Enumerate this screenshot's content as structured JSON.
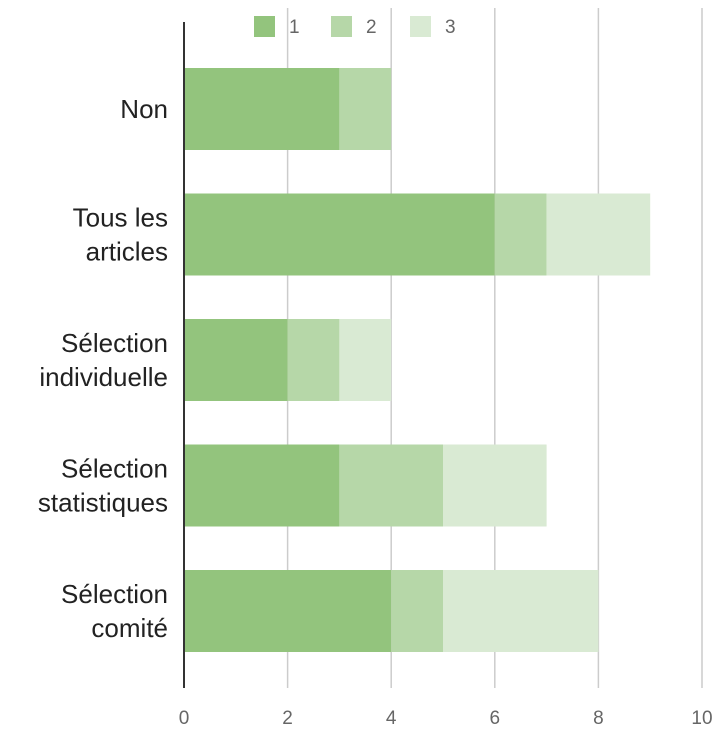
{
  "chart_data": {
    "type": "bar",
    "orientation": "horizontal",
    "stacked": true,
    "categories": [
      [
        "Non"
      ],
      [
        "Tous les",
        "articles"
      ],
      [
        "Sélection",
        "individuelle"
      ],
      [
        "Sélection",
        "statistiques"
      ],
      [
        "Sélection",
        "comité"
      ]
    ],
    "series": [
      {
        "name": "1",
        "color": "#93c47d",
        "values": [
          3,
          6,
          2,
          3,
          4
        ]
      },
      {
        "name": "2",
        "color": "#b6d7a8",
        "values": [
          1,
          1,
          1,
          2,
          1
        ]
      },
      {
        "name": "3",
        "color": "#d9ead3",
        "values": [
          0,
          2,
          1,
          2,
          3
        ]
      }
    ],
    "xlim": [
      0,
      10
    ],
    "xticks": [
      "0",
      "2",
      "4",
      "6",
      "8",
      "10"
    ],
    "grid": true,
    "legend_position": "top"
  }
}
